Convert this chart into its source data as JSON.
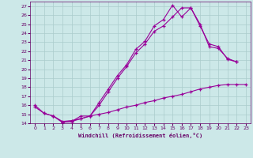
{
  "bg_color": "#cce8e8",
  "line_color": "#990099",
  "grid_color": "#aacccc",
  "xlim": [
    -0.5,
    23.5
  ],
  "ylim": [
    14,
    27.5
  ],
  "xticks": [
    0,
    1,
    2,
    3,
    4,
    5,
    6,
    7,
    8,
    9,
    10,
    11,
    12,
    13,
    14,
    15,
    16,
    17,
    18,
    19,
    20,
    21,
    22,
    23
  ],
  "yticks": [
    14,
    15,
    16,
    17,
    18,
    19,
    20,
    21,
    22,
    23,
    24,
    25,
    26,
    27
  ],
  "xlabel": "Windchill (Refroidissement éolien,°C)",
  "line1_x": [
    0,
    1,
    2,
    3,
    4,
    5,
    6,
    7,
    8,
    9,
    10,
    11,
    12,
    13,
    14,
    15,
    16,
    17,
    18,
    19,
    20,
    21,
    22
  ],
  "line1_y": [
    16.0,
    15.1,
    14.8,
    14.1,
    14.2,
    14.8,
    14.8,
    16.3,
    17.8,
    19.3,
    20.5,
    22.2,
    23.1,
    24.8,
    25.5,
    27.1,
    25.8,
    26.8,
    25.0,
    22.5,
    22.3,
    21.2,
    20.8
  ],
  "line2_x": [
    2,
    3,
    4,
    5,
    6,
    7,
    8,
    9,
    10,
    11,
    12,
    13,
    14,
    15,
    16,
    17,
    18,
    19,
    20,
    21,
    22
  ],
  "line2_y": [
    14.8,
    14.1,
    14.2,
    14.5,
    14.8,
    16.0,
    17.5,
    19.0,
    20.3,
    21.8,
    22.8,
    24.2,
    24.8,
    25.8,
    26.8,
    26.8,
    24.8,
    22.8,
    22.5,
    21.1,
    20.8
  ],
  "line3_x": [
    0,
    1,
    2,
    3,
    4,
    5,
    6,
    7,
    8,
    9,
    10,
    11,
    12,
    13,
    14,
    15,
    16,
    17,
    18,
    19,
    20,
    21,
    22,
    23
  ],
  "line3_y": [
    15.8,
    15.1,
    14.8,
    14.2,
    14.3,
    14.5,
    14.8,
    15.0,
    15.2,
    15.5,
    15.8,
    16.0,
    16.3,
    16.5,
    16.8,
    17.0,
    17.2,
    17.5,
    17.8,
    18.0,
    18.2,
    18.3,
    18.3,
    18.3
  ]
}
